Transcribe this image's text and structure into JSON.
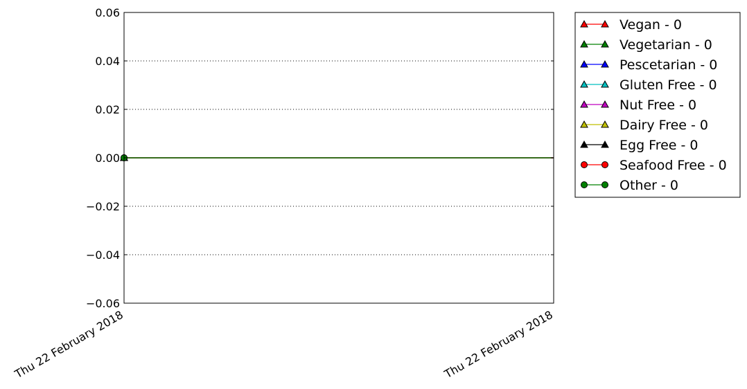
{
  "chart_data": {
    "type": "line",
    "x": [
      "Thu 22 February 2018"
    ],
    "xtick_labels": [
      "Thu 22 February 2018",
      "Thu 22 February 2018"
    ],
    "ylim": [
      -0.06,
      0.06
    ],
    "yticks": [
      0.06,
      0.04,
      0.02,
      0.0,
      -0.02,
      -0.04,
      -0.06
    ],
    "ytick_labels": [
      "0.06",
      "0.04",
      "0.02",
      "0.00",
      "−0.02",
      "−0.04",
      "−0.06"
    ],
    "grid": "horizontal-dotted",
    "legend_position": "outside-right-top",
    "series": [
      {
        "name": "Vegan - 0",
        "values": [
          0
        ],
        "color": "#ff0000",
        "marker": "triangle"
      },
      {
        "name": "Vegetarian - 0",
        "values": [
          0
        ],
        "color": "#008000",
        "marker": "triangle"
      },
      {
        "name": "Pescetarian - 0",
        "values": [
          0
        ],
        "color": "#0000ff",
        "marker": "triangle"
      },
      {
        "name": "Gluten Free - 0",
        "values": [
          0
        ],
        "color": "#00bfbf",
        "marker": "triangle"
      },
      {
        "name": "Nut Free - 0",
        "values": [
          0
        ],
        "color": "#bf00bf",
        "marker": "triangle"
      },
      {
        "name": "Dairy Free - 0",
        "values": [
          0
        ],
        "color": "#bfbf00",
        "marker": "triangle"
      },
      {
        "name": "Egg Free - 0",
        "values": [
          0
        ],
        "color": "#000000",
        "marker": "triangle"
      },
      {
        "name": "Seafood Free - 0",
        "values": [
          0
        ],
        "color": "#ff0000",
        "marker": "circle"
      },
      {
        "name": "Other - 0",
        "values": [
          0
        ],
        "color": "#008000",
        "marker": "circle"
      }
    ]
  }
}
